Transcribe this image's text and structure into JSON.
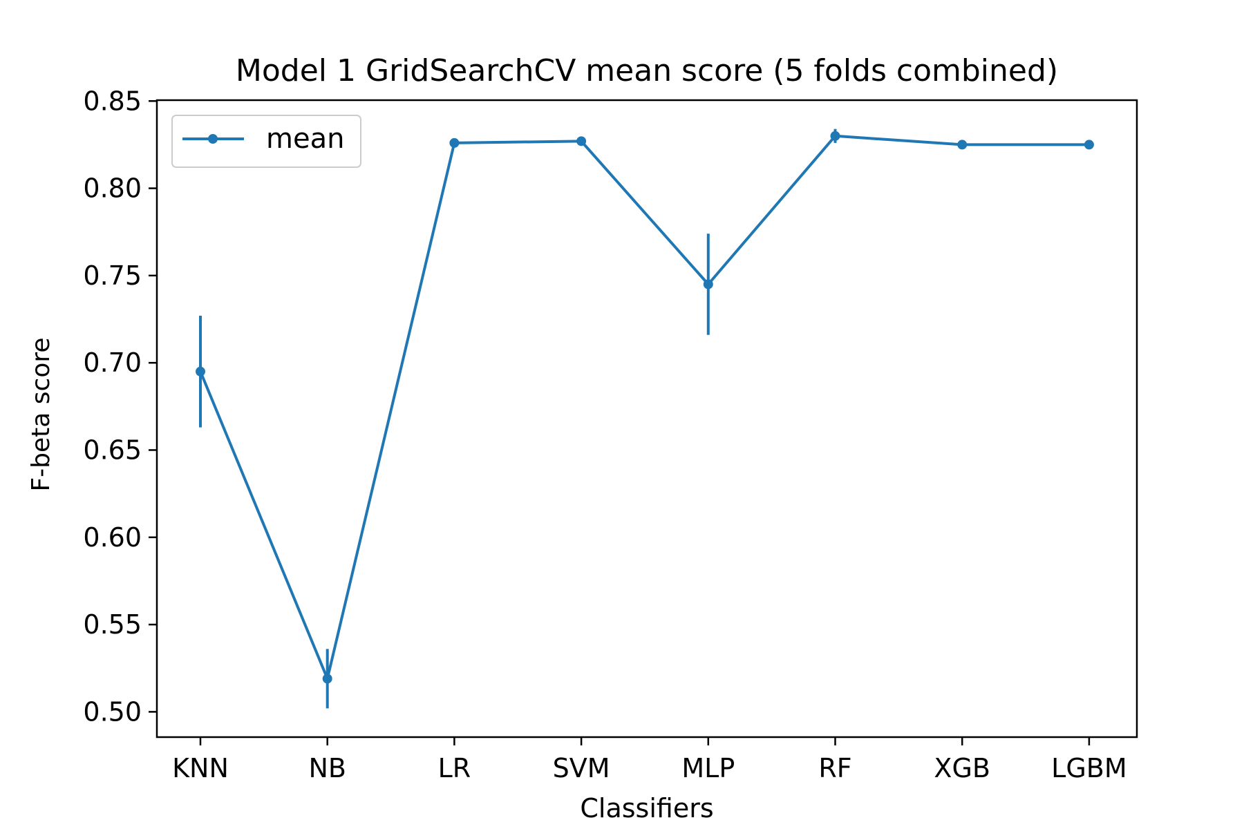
{
  "chart_data": {
    "type": "line",
    "title": "Model 1 GridSearchCV mean score (5 folds combined)",
    "xlabel": "Classifiers",
    "ylabel": "F-beta score",
    "categories": [
      "KNN",
      "NB",
      "LR",
      "SVM",
      "MLP",
      "RF",
      "XGB",
      "LGBM"
    ],
    "series": [
      {
        "name": "mean",
        "color": "#1f77b4",
        "values": [
          0.695,
          0.519,
          0.826,
          0.827,
          0.745,
          0.83,
          0.825,
          0.825
        ],
        "errors": [
          0.032,
          0.017,
          0.001,
          0.002,
          0.029,
          0.004,
          0.001,
          0.001
        ]
      }
    ],
    "ylim": [
      0.4855,
      0.8505
    ],
    "yticks": [
      "0.50",
      "0.55",
      "0.60",
      "0.65",
      "0.70",
      "0.75",
      "0.80",
      "0.85"
    ],
    "grid": false,
    "legend_position": "top-left"
  }
}
